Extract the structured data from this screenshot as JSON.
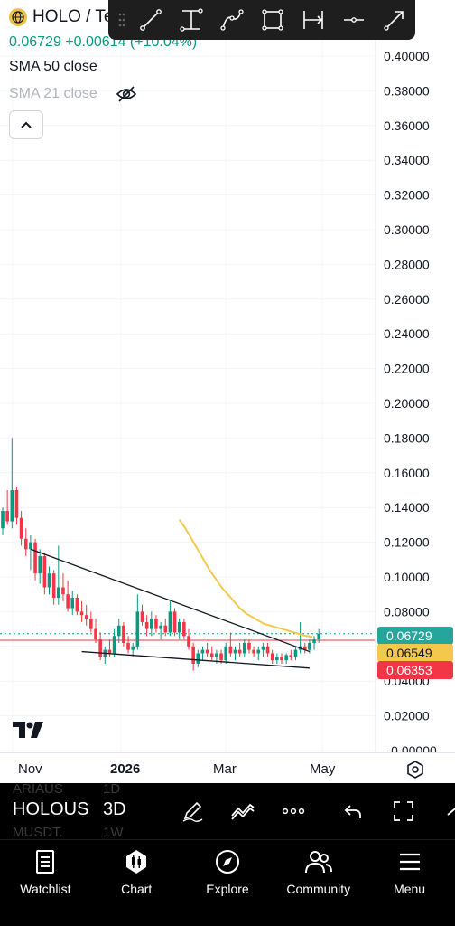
{
  "header": {
    "symbol": "HOLO / Te",
    "price_change": "0.06729 +0.00614 (+10.04%)",
    "indicator_1": "SMA 50 close",
    "indicator_2": "SMA 21 close"
  },
  "colors": {
    "up": "#089981",
    "down": "#f23645",
    "sma": "#f2c94c",
    "trendline": "#131722"
  },
  "chart_data": {
    "type": "candlestick",
    "symbol": "HOLO",
    "ylim": [
      0,
      0.4
    ],
    "y_ticks": [
      "0.40000",
      "0.38000",
      "0.36000",
      "0.34000",
      "0.32000",
      "0.30000",
      "0.28000",
      "0.26000",
      "0.24000",
      "0.22000",
      "0.20000",
      "0.18000",
      "0.16000",
      "0.14000",
      "0.12000",
      "0.10000",
      "0.08000",
      "0.06000",
      "0.04000",
      "0.02000",
      "−0.00000"
    ],
    "x_ticks": [
      "Nov",
      "2026",
      "Mar",
      "May"
    ],
    "price_labels": {
      "last": "0.06729",
      "sma": "0.06549",
      "low": "0.06353"
    },
    "price_levels": {
      "last": 0.06729,
      "sma": 0.06549,
      "low": 0.06353
    },
    "candles": [
      [
        0.128,
        0.14,
        0.124,
        0.138
      ],
      [
        0.138,
        0.15,
        0.13,
        0.132
      ],
      [
        0.132,
        0.18,
        0.128,
        0.15
      ],
      [
        0.15,
        0.152,
        0.13,
        0.134
      ],
      [
        0.134,
        0.138,
        0.118,
        0.122
      ],
      [
        0.122,
        0.128,
        0.112,
        0.116
      ],
      [
        0.116,
        0.124,
        0.104,
        0.12
      ],
      [
        0.12,
        0.122,
        0.098,
        0.102
      ],
      [
        0.102,
        0.116,
        0.096,
        0.112
      ],
      [
        0.112,
        0.114,
        0.09,
        0.094
      ],
      [
        0.094,
        0.106,
        0.09,
        0.102
      ],
      [
        0.102,
        0.104,
        0.084,
        0.088
      ],
      [
        0.088,
        0.118,
        0.084,
        0.094
      ],
      [
        0.094,
        0.102,
        0.086,
        0.09
      ],
      [
        0.09,
        0.098,
        0.08,
        0.082
      ],
      [
        0.082,
        0.092,
        0.078,
        0.088
      ],
      [
        0.088,
        0.09,
        0.078,
        0.08
      ],
      [
        0.08,
        0.086,
        0.074,
        0.078
      ],
      [
        0.078,
        0.084,
        0.072,
        0.076
      ],
      [
        0.076,
        0.08,
        0.068,
        0.07
      ],
      [
        0.07,
        0.076,
        0.062,
        0.064
      ],
      [
        0.064,
        0.068,
        0.052,
        0.054
      ],
      [
        0.054,
        0.06,
        0.05,
        0.058
      ],
      [
        0.058,
        0.064,
        0.054,
        0.056
      ],
      [
        0.056,
        0.07,
        0.054,
        0.066
      ],
      [
        0.066,
        0.076,
        0.062,
        0.072
      ],
      [
        0.072,
        0.074,
        0.06,
        0.062
      ],
      [
        0.062,
        0.066,
        0.056,
        0.058
      ],
      [
        0.058,
        0.062,
        0.054,
        0.06
      ],
      [
        0.06,
        0.09,
        0.058,
        0.08
      ],
      [
        0.08,
        0.084,
        0.072,
        0.074
      ],
      [
        0.074,
        0.078,
        0.066,
        0.07
      ],
      [
        0.07,
        0.08,
        0.066,
        0.076
      ],
      [
        0.076,
        0.078,
        0.068,
        0.07
      ],
      [
        0.07,
        0.074,
        0.064,
        0.072
      ],
      [
        0.072,
        0.076,
        0.066,
        0.068
      ],
      [
        0.068,
        0.086,
        0.066,
        0.08
      ],
      [
        0.08,
        0.082,
        0.066,
        0.068
      ],
      [
        0.068,
        0.076,
        0.064,
        0.074
      ],
      [
        0.074,
        0.076,
        0.064,
        0.066
      ],
      [
        0.066,
        0.07,
        0.058,
        0.06
      ],
      [
        0.06,
        0.062,
        0.046,
        0.05
      ],
      [
        0.05,
        0.058,
        0.048,
        0.056
      ],
      [
        0.056,
        0.06,
        0.052,
        0.058
      ],
      [
        0.058,
        0.062,
        0.054,
        0.056
      ],
      [
        0.056,
        0.06,
        0.052,
        0.054
      ],
      [
        0.054,
        0.058,
        0.05,
        0.056
      ],
      [
        0.056,
        0.058,
        0.05,
        0.052
      ],
      [
        0.052,
        0.062,
        0.05,
        0.06
      ],
      [
        0.06,
        0.068,
        0.054,
        0.056
      ],
      [
        0.056,
        0.06,
        0.052,
        0.058
      ],
      [
        0.058,
        0.062,
        0.054,
        0.056
      ],
      [
        0.056,
        0.064,
        0.054,
        0.062
      ],
      [
        0.062,
        0.064,
        0.056,
        0.058
      ],
      [
        0.058,
        0.06,
        0.054,
        0.056
      ],
      [
        0.056,
        0.06,
        0.052,
        0.058
      ],
      [
        0.058,
        0.062,
        0.054,
        0.06
      ],
      [
        0.06,
        0.062,
        0.054,
        0.056
      ],
      [
        0.056,
        0.058,
        0.05,
        0.052
      ],
      [
        0.052,
        0.056,
        0.05,
        0.054
      ],
      [
        0.054,
        0.056,
        0.05,
        0.052
      ],
      [
        0.052,
        0.056,
        0.05,
        0.055
      ],
      [
        0.055,
        0.058,
        0.052,
        0.054
      ],
      [
        0.054,
        0.06,
        0.052,
        0.058
      ],
      [
        0.058,
        0.074,
        0.056,
        0.06
      ],
      [
        0.06,
        0.062,
        0.056,
        0.058
      ],
      [
        0.058,
        0.064,
        0.056,
        0.062
      ],
      [
        0.062,
        0.066,
        0.058,
        0.064
      ],
      [
        0.064,
        0.07,
        0.062,
        0.06729
      ]
    ],
    "sma": [
      0.133,
      0.128,
      0.122,
      0.116,
      0.11,
      0.104,
      0.099,
      0.094,
      0.09,
      0.086,
      0.082,
      0.079,
      0.077,
      0.075,
      0.073,
      0.072,
      0.071,
      0.07,
      0.069,
      0.068,
      0.067,
      0.066,
      0.0655
    ],
    "trendlines": [
      {
        "from": [
          6,
          0.116
        ],
        "to": [
          66,
          0.057
        ]
      },
      {
        "from": [
          17,
          0.057
        ],
        "to": [
          66,
          0.0475
        ]
      }
    ]
  },
  "bottom_toolbar": {
    "symbol": "HOLOUS",
    "interval": "3D",
    "ghost_1": "ARIAUS",
    "ghost_1_interval": "1D",
    "ghost_2": "MUSDT.",
    "ghost_2_interval": "1W"
  },
  "nav": {
    "items": [
      {
        "label": "Watchlist",
        "icon": "watchlist-icon"
      },
      {
        "label": "Chart",
        "icon": "chart-icon"
      },
      {
        "label": "Explore",
        "icon": "compass-icon"
      },
      {
        "label": "Community",
        "icon": "community-icon"
      },
      {
        "label": "Menu",
        "icon": "menu-icon"
      }
    ]
  }
}
